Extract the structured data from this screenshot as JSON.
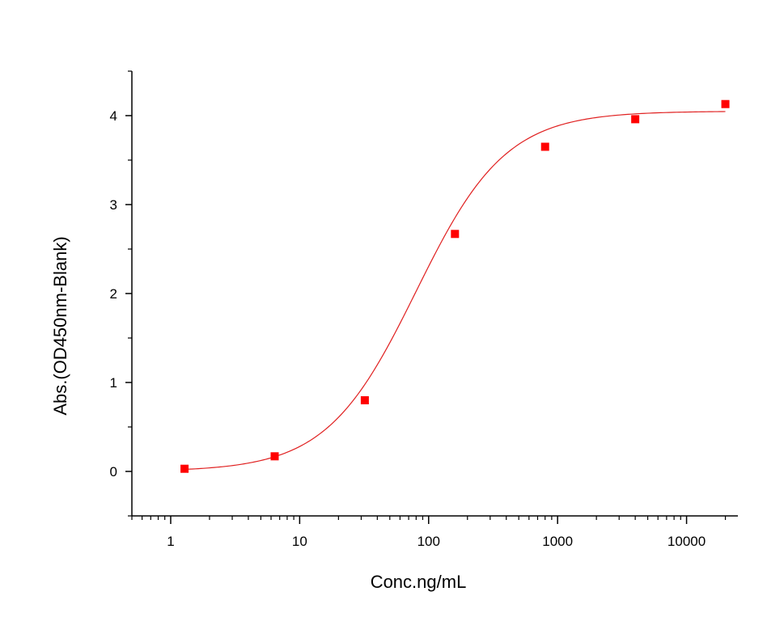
{
  "chart_data": {
    "type": "scatter",
    "xlabel": "Conc.ng/mL",
    "ylabel": "Abs.(OD450nm-Blank)",
    "x_scale": "log",
    "xlim": [
      0.5,
      25000
    ],
    "ylim": [
      -0.5,
      4.5
    ],
    "x_ticks": [
      1,
      10,
      100,
      1000,
      10000
    ],
    "x_tick_labels": [
      "1",
      "10",
      "100",
      "1000",
      "10000"
    ],
    "y_ticks": [
      0,
      1,
      2,
      3,
      4
    ],
    "y_tick_labels": [
      "0",
      "1",
      "2",
      "3",
      "4"
    ],
    "grid": false,
    "legend": "none",
    "colors": {
      "marker": "#ff0000",
      "curve": "#e02020",
      "axis": "#000000"
    },
    "series": [
      {
        "x": [
          1.28,
          6.4,
          32,
          160,
          800,
          4000,
          20000
        ],
        "y": [
          0.03,
          0.17,
          0.8,
          2.67,
          3.65,
          3.96,
          4.13
        ]
      }
    ],
    "fit_curve": {
      "model": "4PL",
      "bottom": 0.0,
      "top": 4.05,
      "ec50": 80,
      "hill": 1.25
    }
  }
}
